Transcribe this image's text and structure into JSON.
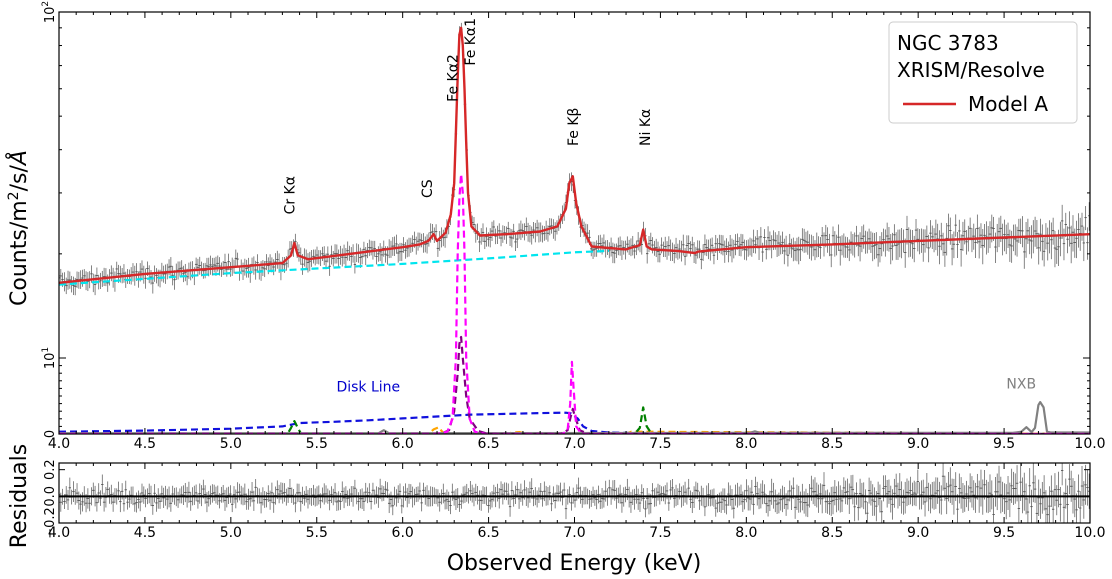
{
  "chart_data": [
    {
      "type": "line",
      "panel": "spectrum",
      "ylabel_parts": [
        "Counts/m",
        "2",
        "/s/",
        "Å"
      ],
      "x_range": [
        4.0,
        10.0
      ],
      "y_scale": "symlog",
      "y_range": [
        0,
        100
      ],
      "x_ticks": [
        4.0,
        4.5,
        5.0,
        5.5,
        6.0,
        6.5,
        7.0,
        7.5,
        8.0,
        8.5,
        9.0,
        9.5,
        10.0
      ],
      "x_tick_labels": [
        "4.0",
        "4.5",
        "5.0",
        "5.5",
        "6.0",
        "6.5",
        "7.0",
        "7.5",
        "8.0",
        "8.5",
        "9.0",
        "9.5",
        "10.0"
      ],
      "y_ticks": [
        {
          "value": 0,
          "label_base": "0",
          "label_exp": ""
        },
        {
          "value": 10,
          "label_base": "10",
          "label_exp": "1"
        },
        {
          "value": 100,
          "label_base": "10",
          "label_exp": "2"
        }
      ],
      "legend": {
        "position": "top-right",
        "lines": [
          "NGC 3783",
          "XRISM/Resolve"
        ],
        "entries": [
          {
            "label": "Model A",
            "color": "#d62728"
          }
        ]
      },
      "annotations": [
        {
          "text": "Cr Kα",
          "x": 5.37,
          "y": 26,
          "rotate": true
        },
        {
          "text": "CS",
          "x": 6.17,
          "y": 29,
          "rotate": true
        },
        {
          "text": "Fe Kα2",
          "x": 6.32,
          "y": 55,
          "rotate": true
        },
        {
          "text": "Fe Kα1",
          "x": 6.42,
          "y": 70,
          "rotate": true
        },
        {
          "text": "Fe Kβ",
          "x": 7.02,
          "y": 41,
          "rotate": true
        },
        {
          "text": "Ni Kα",
          "x": 7.44,
          "y": 41,
          "rotate": true
        },
        {
          "text": "Disk Line",
          "x": 5.8,
          "y": 5.6,
          "rotate": false,
          "color": "#0000cc"
        },
        {
          "text": "NXB",
          "x": 9.6,
          "y": 6.0,
          "rotate": false,
          "color": "#808080"
        }
      ],
      "series": [
        {
          "name": "Model A",
          "style": "solid",
          "color": "#d62728",
          "x": [
            4.0,
            4.5,
            5.0,
            5.3,
            5.35,
            5.37,
            5.39,
            5.45,
            5.8,
            6.0,
            6.1,
            6.15,
            6.18,
            6.2,
            6.25,
            6.28,
            6.3,
            6.31,
            6.32,
            6.33,
            6.34,
            6.35,
            6.36,
            6.37,
            6.38,
            6.4,
            6.45,
            6.6,
            6.8,
            6.9,
            6.95,
            6.97,
            6.99,
            7.01,
            7.04,
            7.1,
            7.3,
            7.38,
            7.4,
            7.42,
            7.45,
            7.6,
            7.7,
            7.72,
            8.0,
            8.5,
            9.0,
            9.5,
            10.0
          ],
          "y": [
            16.5,
            17.5,
            18.3,
            18.8,
            19.8,
            21.5,
            19.8,
            19.3,
            20.3,
            20.9,
            21.3,
            21.8,
            22.8,
            21.8,
            23,
            26,
            32,
            45,
            65,
            86,
            90,
            80,
            60,
            42,
            30,
            24,
            22.6,
            22.8,
            23.2,
            24,
            27,
            32,
            33.5,
            28,
            24,
            21,
            20.6,
            21.2,
            23.5,
            21,
            20.6,
            20.4,
            20.1,
            20.3,
            20.9,
            21.3,
            21.8,
            22.3,
            22.8
          ]
        },
        {
          "name": "",
          "style": "dashed",
          "color": "#00e5ee",
          "x": [
            4.0,
            5.0,
            6.0,
            6.5,
            7.0,
            7.2
          ],
          "y": [
            16.3,
            17.6,
            18.7,
            19.4,
            20.2,
            20.4
          ]
        },
        {
          "name": "",
          "style": "dashed",
          "color": "#ff00ff",
          "x": [
            4.0,
            6.2,
            6.26,
            6.29,
            6.31,
            6.32,
            6.33,
            6.34,
            6.35,
            6.36,
            6.37,
            6.39,
            6.42,
            6.48,
            6.93,
            6.96,
            6.975,
            6.985,
            6.995,
            7.01,
            7.04,
            10.0
          ],
          "y": [
            0,
            0,
            0.3,
            2,
            10,
            20,
            29,
            34,
            30,
            20,
            10,
            2,
            0.3,
            0,
            0,
            0.5,
            4,
            9.5,
            6,
            1,
            0,
            0
          ]
        },
        {
          "name": "",
          "style": "dashed",
          "color": "#800080",
          "x": [
            4.0,
            6.22,
            6.27,
            6.3,
            6.32,
            6.33,
            6.34,
            6.35,
            6.37,
            6.39,
            6.44,
            6.5,
            6.92,
            6.96,
            6.98,
            6.99,
            7.0,
            7.03,
            7.08,
            10.0
          ],
          "y": [
            0,
            0,
            0.5,
            3,
            8,
            11,
            11.5,
            10,
            5,
            2,
            0.4,
            0,
            0,
            0.5,
            2.5,
            3.3,
            2.5,
            0.5,
            0,
            0
          ]
        },
        {
          "name": "Disk Line",
          "style": "dashed",
          "color": "#1111dd",
          "x": [
            4.0,
            4.5,
            5.0,
            5.3,
            5.4,
            5.6,
            5.8,
            6.0,
            6.2,
            6.4,
            6.6,
            6.8,
            6.95,
            6.98,
            7.02,
            7.05,
            7.1,
            7.2,
            7.3,
            7.75
          ],
          "y": [
            0.3,
            0.45,
            0.7,
            1.0,
            1.45,
            1.6,
            1.8,
            2.05,
            2.3,
            2.55,
            2.65,
            2.75,
            2.8,
            2.7,
            2.0,
            1.0,
            0.4,
            0.2,
            0.15,
            0.05
          ]
        },
        {
          "name": "",
          "style": "dashed",
          "color": "#008000",
          "x": [
            4.0,
            5.33,
            5.35,
            5.37,
            5.39,
            5.41,
            7.35,
            7.38,
            7.4,
            7.42,
            7.45,
            10.0
          ],
          "y": [
            0,
            0,
            0.8,
            1.7,
            0.8,
            0,
            0,
            0.8,
            3.5,
            1.0,
            0,
            0
          ]
        },
        {
          "name": "",
          "style": "dashed",
          "color": "#ffa500",
          "x": [
            4.0,
            6.15,
            6.18,
            6.21,
            6.24,
            6.6,
            6.64,
            6.68,
            6.72,
            7.3,
            7.33,
            7.36,
            10.0
          ],
          "y": [
            0,
            0,
            0.6,
            0.9,
            0,
            0,
            0.2,
            0.25,
            0,
            0,
            0.3,
            0.3,
            0
          ]
        },
        {
          "name": "NXB",
          "style": "solid",
          "color": "#808080",
          "x": [
            4.0,
            5.86,
            5.89,
            5.92,
            7.9,
            8.02,
            8.05,
            8.08,
            9.55,
            9.6,
            9.63,
            9.66,
            9.68,
            9.7,
            9.71,
            9.73,
            9.75,
            9.77,
            10.0
          ],
          "y": [
            0.1,
            0.1,
            0.5,
            0.1,
            0.15,
            0.15,
            0.35,
            0.15,
            0.15,
            0.3,
            0.9,
            0.25,
            0.8,
            3.8,
            4.2,
            3.5,
            0.3,
            0.2,
            0.2
          ]
        }
      ]
    },
    {
      "type": "scatter",
      "panel": "residuals",
      "ylabel": "Residuals",
      "xlabel": "Observed Energy (keV)",
      "x_range": [
        4.0,
        10.0
      ],
      "y_range": [
        -0.2,
        0.25
      ],
      "y_ticks": [
        -0.2,
        0.0,
        0.2
      ],
      "y_tick_labels": [
        "−0.2",
        "0.0",
        "0.2"
      ],
      "x_ticks": [
        4.0,
        4.5,
        5.0,
        5.5,
        6.0,
        6.5,
        7.0,
        7.5,
        8.0,
        8.5,
        9.0,
        9.5,
        10.0
      ],
      "x_tick_labels": [
        "4.0",
        "4.5",
        "5.0",
        "5.5",
        "6.0",
        "6.5",
        "7.0",
        "7.5",
        "8.0",
        "8.5",
        "9.0",
        "9.5",
        "10.0"
      ],
      "zero_line": 0.0
    }
  ]
}
